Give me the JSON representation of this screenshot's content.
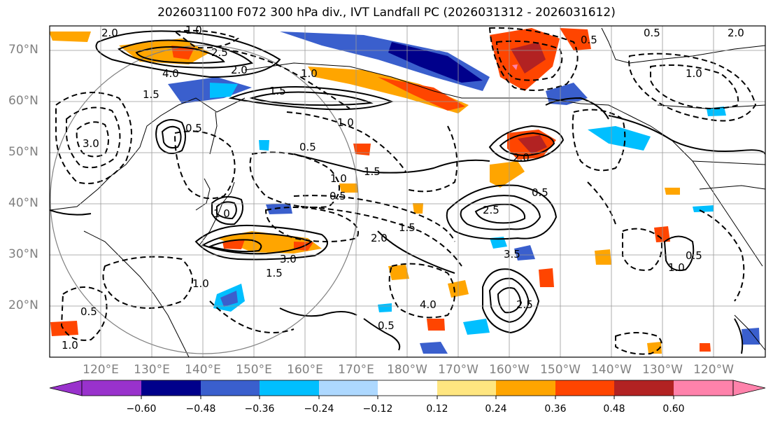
{
  "title": "2026031100 F072 300 hPa div., IVT Landfall PC (2026031312 - 2026031612)",
  "latitude_labels": [
    "70°N",
    "60°N",
    "50°N",
    "40°N",
    "30°N",
    "20°N"
  ],
  "longitude_labels": [
    "120°E",
    "130°E",
    "140°E",
    "150°E",
    "160°E",
    "170°E",
    "180°W",
    "170°W",
    "160°W",
    "150°W",
    "140°W",
    "130°W",
    "120°W"
  ],
  "colorbar": {
    "tick_labels": [
      "−0.60",
      "−0.48",
      "−0.36",
      "−0.24",
      "−0.12",
      "0.12",
      "0.24",
      "0.36",
      "0.48",
      "0.60"
    ],
    "bin_colors": [
      "#9932cc",
      "#00008b",
      "#3a5fcd",
      "#00bfff",
      "#add8ff",
      "#ffffff",
      "#ffe680",
      "#ffa500",
      "#ff4500",
      "#b22222",
      "#ff82ab"
    ]
  },
  "fill_colors": {
    "negative_strong": "#00008b",
    "negative": "#3a5fcd",
    "negative_light": "#00bfff",
    "positive_light": "#ffa500",
    "positive": "#ff4500",
    "positive_strong": "#b22222",
    "positive_extreme": "#ff82ab"
  },
  "contour_labels": [
    "2.0",
    "1.0",
    "0.5",
    "4.0",
    "1.5",
    "2.5",
    "3.0",
    "0.5",
    "1.0",
    "2.0",
    "1.5",
    "1.0",
    "0.5",
    "2.0",
    "0.5",
    "1.5",
    "1.0",
    "0.5",
    "1.0",
    "2.0",
    "3.0",
    "1.5",
    "2.5",
    "1.0",
    "0.5",
    "1.5",
    "3.5",
    "4.0",
    "1.0",
    "0.5",
    "0.5",
    "1.0",
    "0.5",
    "2.0",
    "1.0",
    "2.5"
  ]
}
